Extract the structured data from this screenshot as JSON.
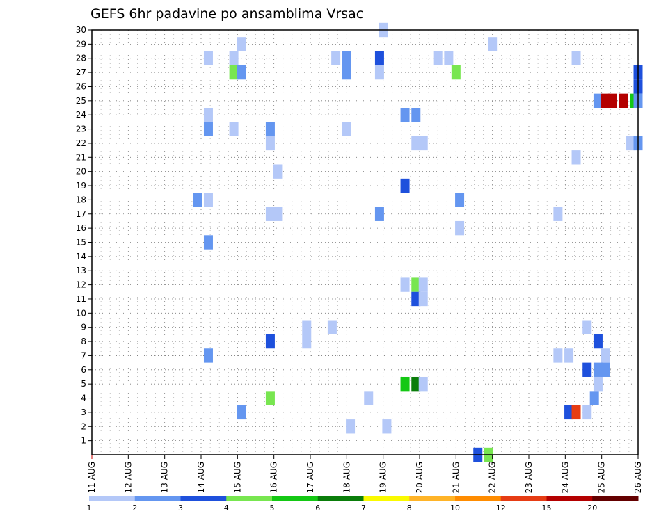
{
  "chart_data": {
    "type": "heatmap",
    "title": "GEFS 6hr padavine po ansamblima Vrsac",
    "xlabel": "",
    "ylabel": "",
    "x_tick_labels": [
      "11 AUG",
      "12 AUG",
      "13 AUG",
      "14 AUG",
      "15 AUG",
      "16 AUG",
      "17 AUG",
      "18 AUG",
      "19 AUG",
      "20 AUG",
      "21 AUG",
      "22 AUG",
      "23 AUG",
      "24 AUG",
      "25 AUG",
      "26 AUG"
    ],
    "y_tick_labels": [
      "1",
      "2",
      "3",
      "4",
      "5",
      "6",
      "7",
      "8",
      "9",
      "10",
      "11",
      "12",
      "13",
      "14",
      "15",
      "16",
      "17",
      "18",
      "19",
      "20",
      "21",
      "22",
      "23",
      "24",
      "25",
      "26",
      "27",
      "28",
      "29",
      "30"
    ],
    "xlim_days": [
      11,
      26
    ],
    "ylim": [
      0,
      30
    ],
    "grid": true,
    "colorbar": {
      "colors": [
        "#b4c8f8",
        "#6496f0",
        "#1e50dc",
        "#78e650",
        "#14c814",
        "#0a7d0a",
        "#fafa00",
        "#ffb428",
        "#ff8c00",
        "#e63c14",
        "#b40000",
        "#640000"
      ],
      "labels": [
        "1",
        "2",
        "3",
        "4",
        "5",
        "6",
        "7",
        "8",
        "10",
        "12",
        "15",
        "20"
      ]
    },
    "cells": [
      [
        30,
        19.0,
        1
      ],
      [
        29,
        15.1,
        1
      ],
      [
        29,
        22.0,
        1
      ],
      [
        28,
        14.2,
        1
      ],
      [
        28,
        14.9,
        1
      ],
      [
        28,
        17.7,
        1
      ],
      [
        28,
        18.0,
        2
      ],
      [
        28,
        18.9,
        3
      ],
      [
        28,
        20.5,
        1
      ],
      [
        28,
        20.8,
        1
      ],
      [
        28,
        24.3,
        1
      ],
      [
        27,
        14.9,
        4
      ],
      [
        27,
        15.1,
        2
      ],
      [
        27,
        18.0,
        2
      ],
      [
        27,
        18.9,
        1
      ],
      [
        27,
        21.0,
        4
      ],
      [
        27,
        26.0,
        3
      ],
      [
        26,
        26.0,
        3
      ],
      [
        25,
        24.9,
        2
      ],
      [
        25,
        25.1,
        11
      ],
      [
        25,
        25.3,
        11
      ],
      [
        25,
        25.6,
        11
      ],
      [
        25,
        25.9,
        5
      ],
      [
        25,
        26.0,
        2
      ],
      [
        24,
        14.2,
        1
      ],
      [
        24,
        19.6,
        2
      ],
      [
        24,
        19.9,
        2
      ],
      [
        23,
        14.2,
        2
      ],
      [
        23,
        14.9,
        1
      ],
      [
        23,
        15.9,
        2
      ],
      [
        23,
        18.0,
        1
      ],
      [
        22,
        15.9,
        1
      ],
      [
        22,
        19.9,
        1
      ],
      [
        22,
        20.1,
        1
      ],
      [
        22,
        25.8,
        1
      ],
      [
        22,
        26.0,
        2
      ],
      [
        21,
        24.3,
        1
      ],
      [
        20,
        16.1,
        1
      ],
      [
        19,
        19.6,
        3
      ],
      [
        18,
        13.9,
        2
      ],
      [
        18,
        14.2,
        1
      ],
      [
        18,
        21.1,
        2
      ],
      [
        17,
        15.9,
        1
      ],
      [
        17,
        16.1,
        1
      ],
      [
        17,
        18.9,
        2
      ],
      [
        17,
        23.8,
        1
      ],
      [
        16,
        21.1,
        1
      ],
      [
        15,
        14.2,
        2
      ],
      [
        12,
        19.6,
        1
      ],
      [
        12,
        19.9,
        4
      ],
      [
        12,
        20.1,
        1
      ],
      [
        11,
        19.9,
        3
      ],
      [
        11,
        20.1,
        1
      ],
      [
        9,
        16.9,
        1
      ],
      [
        9,
        17.6,
        1
      ],
      [
        9,
        24.6,
        1
      ],
      [
        8,
        15.9,
        3
      ],
      [
        8,
        16.9,
        1
      ],
      [
        8,
        24.9,
        3
      ],
      [
        7,
        14.2,
        2
      ],
      [
        7,
        23.8,
        1
      ],
      [
        7,
        24.1,
        1
      ],
      [
        7,
        25.1,
        1
      ],
      [
        6,
        24.6,
        3
      ],
      [
        6,
        24.9,
        2
      ],
      [
        6,
        25.1,
        2
      ],
      [
        5,
        19.6,
        5
      ],
      [
        5,
        19.9,
        6
      ],
      [
        5,
        20.1,
        1
      ],
      [
        5,
        24.9,
        1
      ],
      [
        4,
        15.9,
        4
      ],
      [
        4,
        18.6,
        1
      ],
      [
        4,
        24.8,
        2
      ],
      [
        3,
        15.1,
        2
      ],
      [
        3,
        24.1,
        3
      ],
      [
        3,
        24.3,
        10
      ],
      [
        3,
        24.6,
        1
      ],
      [
        2,
        18.1,
        1
      ],
      [
        2,
        19.1,
        1
      ],
      [
        0,
        21.6,
        3
      ],
      [
        0,
        21.9,
        4
      ]
    ]
  }
}
